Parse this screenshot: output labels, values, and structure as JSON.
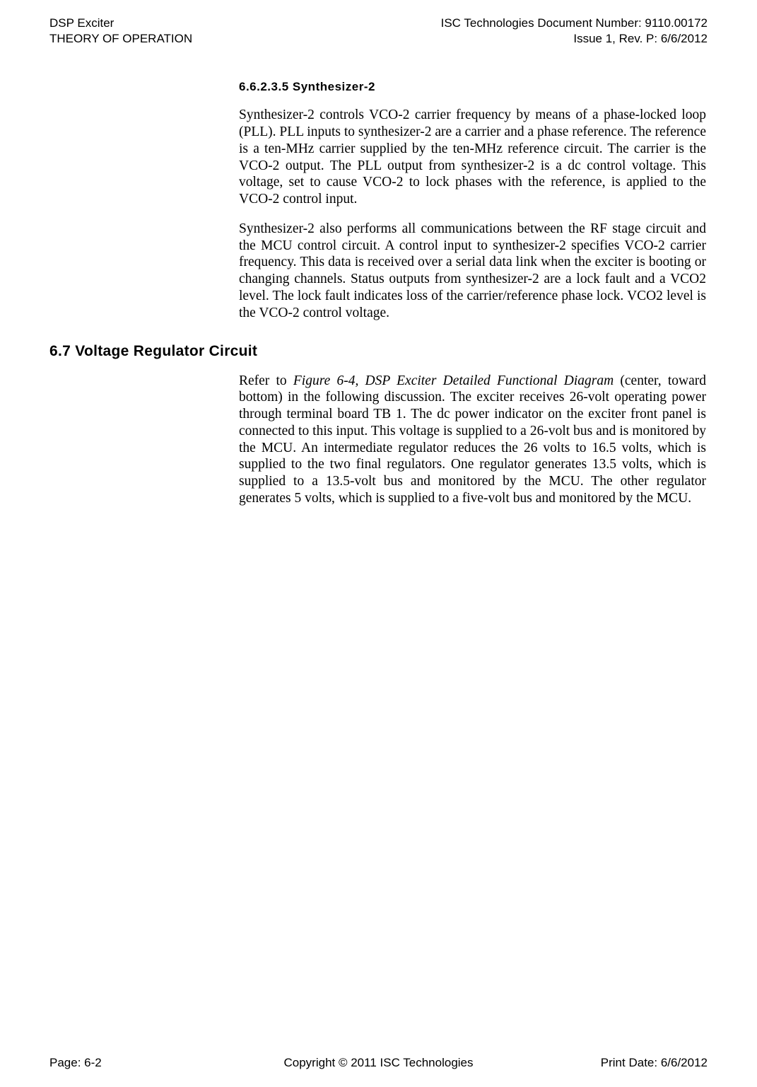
{
  "header": {
    "left_line1": "DSP Exciter",
    "left_line2": "THEORY OF OPERATION",
    "right_line1": "ISC Technologies Document Number: 9110.00172",
    "right_line2": "Issue 1, Rev. P: 6/6/2012"
  },
  "section1": {
    "heading": "6.6.2.3.5 Synthesizer-2",
    "para1": "Synthesizer-2 controls VCO-2 carrier frequency by means of a phase-locked loop (PLL). PLL inputs to synthesizer-2 are a carrier and a phase reference. The reference is a ten-MHz carrier supplied by the ten-MHz reference circuit. The carrier is the VCO-2 output. The PLL output from synthesizer-2 is a dc control voltage. This voltage, set to cause VCO-2 to lock phases with the reference, is applied to the VCO-2 control input.",
    "para2": "Synthesizer-2 also performs all communications between the RF stage circuit and the MCU control circuit. A control input to synthesizer-2 specifies VCO-2 carrier frequency. This data is received over a serial data link when the exciter is booting or changing channels. Status outputs from synthesizer-2 are a lock fault and a VCO2 level. The lock fault indicates loss of the carrier/reference phase lock. VCO2 level is the VCO-2 control voltage."
  },
  "section2": {
    "heading": "6.7 Voltage Regulator Circuit",
    "para_pre": "Refer to ",
    "para_ref": "Figure 6-4, DSP Exciter Detailed Functional Diagram",
    "para_post": " (center, toward bottom) in the following discussion. The exciter receives 26-volt operating power through terminal board TB 1. The dc power indicator on the exciter front panel is connected to this input. This voltage is supplied to a 26-volt bus and is monitored by the MCU. An intermediate regulator reduces the 26 volts to 16.5 volts, which is supplied to the two final regulators. One regulator generates 13.5 volts, which is supplied to a 13.5-volt bus and monitored by the MCU. The other regulator generates 5 volts, which is supplied to a five-volt bus and monitored by the MCU."
  },
  "footer": {
    "left": "Page: 6-2",
    "center": "Copyright © 2011 ISC Technologies",
    "right": "Print Date: 6/6/2012"
  }
}
